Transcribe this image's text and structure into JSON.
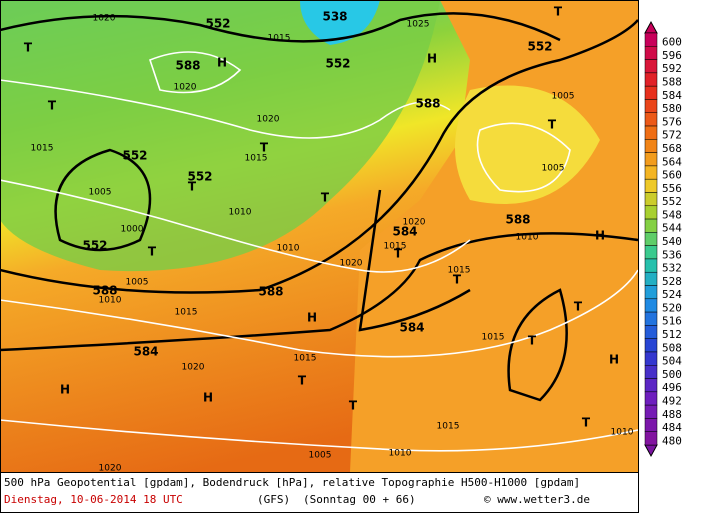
{
  "map": {
    "labels": [
      "538",
      "552",
      "552",
      "588",
      "H",
      "552",
      "H",
      "T",
      "T",
      "T",
      "588",
      "T",
      "552",
      "552",
      "T",
      "T",
      "T",
      "552",
      "T",
      "588",
      "H",
      "584",
      "T",
      "T",
      "588",
      "588",
      "H",
      "584",
      "T",
      "T",
      "584",
      "H",
      "H",
      "T",
      "T",
      "H",
      "T",
      "1020",
      "1015",
      "1025",
      "1020",
      "1020",
      "1015",
      "1015",
      "1010",
      "1005",
      "1000",
      "1020",
      "1015",
      "1010",
      "1010",
      "1005",
      "1010",
      "1015",
      "1015",
      "1020",
      "1015",
      "1015",
      "1010",
      "1005",
      "1020",
      "1010",
      "1005",
      "1005",
      "1015",
      "1020"
    ]
  },
  "colorbar": {
    "ticks": [
      600,
      596,
      592,
      588,
      584,
      580,
      576,
      572,
      568,
      564,
      560,
      556,
      552,
      548,
      544,
      540,
      536,
      532,
      528,
      524,
      520,
      516,
      512,
      508,
      504,
      500,
      496,
      492,
      488,
      484,
      480
    ]
  },
  "footer": {
    "description": "500 hPa Geopotential [gpdam], Bodendruck [hPa], relative Topographie H500-H1000 [gpdam]",
    "date": "Dienstag, 10-06-2014  18 UTC",
    "model": "(GFS)",
    "run": "(Sonntag 00 + 66)",
    "credit": "© www.wetter3.de"
  }
}
